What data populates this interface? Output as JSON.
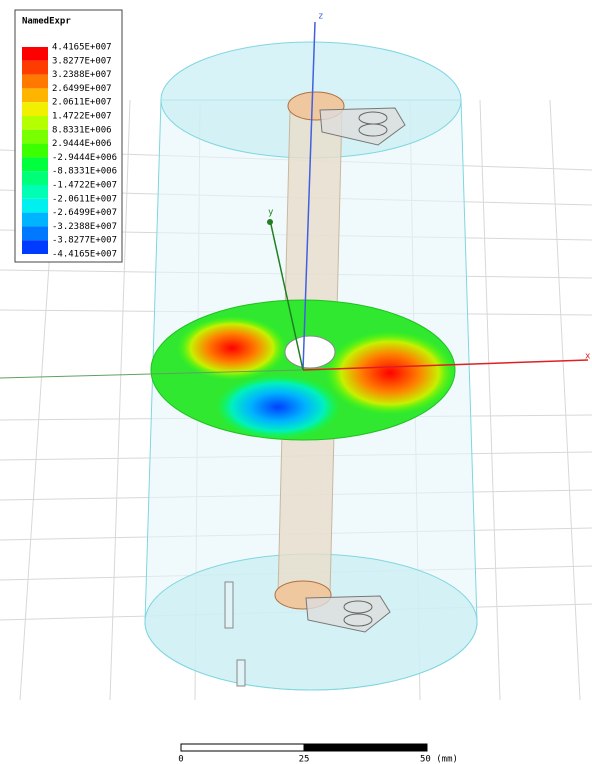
{
  "legend": {
    "title": "NamedExpr",
    "labels": [
      "4.4165E+007",
      "3.8277E+007",
      "3.2388E+007",
      "2.6499E+007",
      "2.0611E+007",
      "1.4722E+007",
      "8.8331E+006",
      "2.9444E+006",
      "-2.9444E+006",
      "-8.8331E+006",
      "-1.4722E+007",
      "-2.0611E+007",
      "-2.6499E+007",
      "-3.2388E+007",
      "-3.8277E+007",
      "-4.4165E+007"
    ],
    "colors": [
      "#ff0000",
      "#ff3c00",
      "#ff7800",
      "#ffb400",
      "#f0f000",
      "#b4ff00",
      "#78ff00",
      "#3cff00",
      "#00ff3c",
      "#00ff78",
      "#00ffb4",
      "#00f0f0",
      "#00b4ff",
      "#0078ff",
      "#003cff"
    ]
  },
  "axes": {
    "x": "x",
    "y": "y",
    "z": "z"
  },
  "scale_bar": {
    "labels": [
      "0",
      "25",
      "50 (mm)"
    ]
  }
}
